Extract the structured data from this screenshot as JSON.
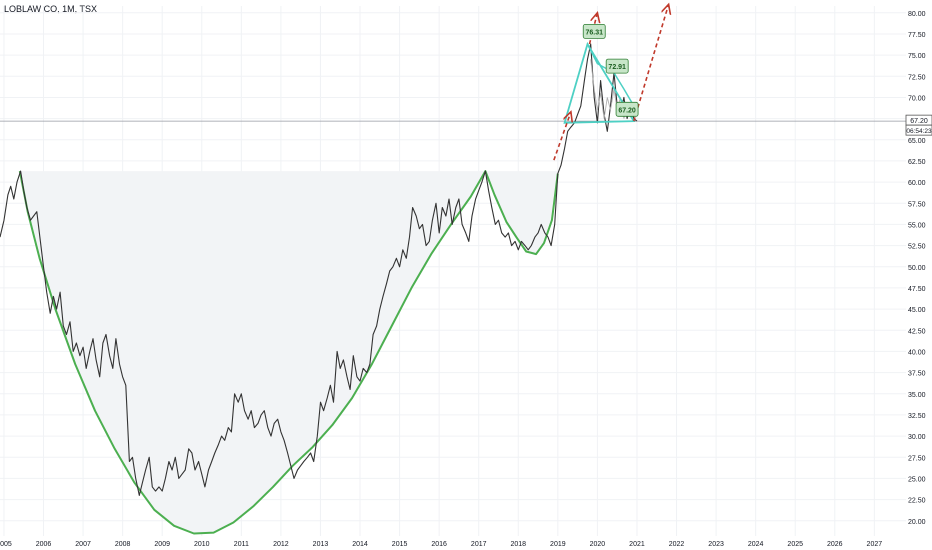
{
  "title": "LOBLAW CO, 1M, TSX",
  "price_tag": "67.20",
  "countdown_tag": "06:54:23",
  "colors": {
    "price_line": "#333333",
    "cup_curve": "#4caf50",
    "triangle": "#4dd0c4",
    "arrow": "#c0392b",
    "callout_bg": "#c8e6c9",
    "callout_border": "#2e7d32",
    "cup_fill": "#f2f4f6",
    "axis_text": "#131722"
  },
  "chart_data": {
    "type": "line",
    "title": "LOBLAW CO, 1M, TSX",
    "xlabel": "",
    "ylabel": "",
    "xlim": [
      2004.9,
      2027.8
    ],
    "ylim": [
      18.2,
      80.8
    ],
    "x_ticks": [
      "2005",
      "2006",
      "2007",
      "2008",
      "2009",
      "2010",
      "2011",
      "2012",
      "2013",
      "2014",
      "2015",
      "2016",
      "2017",
      "2018",
      "2019",
      "2020",
      "2021",
      "2022",
      "2023",
      "2024",
      "2025",
      "2026",
      "2027"
    ],
    "y_ticks": [
      "20.00",
      "22.50",
      "25.00",
      "27.50",
      "30.00",
      "32.50",
      "35.00",
      "37.50",
      "40.00",
      "42.50",
      "45.00",
      "47.50",
      "50.00",
      "52.50",
      "55.00",
      "57.50",
      "60.00",
      "62.50",
      "65.00",
      "67.50",
      "70.00",
      "72.50",
      "75.00",
      "77.50",
      "80.00"
    ],
    "grid": true,
    "series": [
      {
        "style": "price",
        "points": [
          [
            2004.9,
            53.5
          ],
          [
            2005.0,
            55.5
          ],
          [
            2005.1,
            58.5
          ],
          [
            2005.17,
            59.5
          ],
          [
            2005.25,
            58
          ],
          [
            2005.33,
            60
          ],
          [
            2005.42,
            61.3
          ],
          [
            2005.5,
            59
          ],
          [
            2005.58,
            57
          ],
          [
            2005.67,
            55.5
          ],
          [
            2005.75,
            56
          ],
          [
            2005.83,
            56.5
          ],
          [
            2005.92,
            53
          ],
          [
            2006.0,
            50
          ],
          [
            2006.08,
            47
          ],
          [
            2006.17,
            44.5
          ],
          [
            2006.25,
            46.5
          ],
          [
            2006.33,
            45
          ],
          [
            2006.42,
            47
          ],
          [
            2006.5,
            43
          ],
          [
            2006.58,
            42
          ],
          [
            2006.67,
            43.5
          ],
          [
            2006.75,
            40
          ],
          [
            2006.83,
            41
          ],
          [
            2006.92,
            39.5
          ],
          [
            2007.0,
            40.5
          ],
          [
            2007.08,
            38
          ],
          [
            2007.17,
            40
          ],
          [
            2007.25,
            41.5
          ],
          [
            2007.33,
            39
          ],
          [
            2007.42,
            37
          ],
          [
            2007.5,
            41
          ],
          [
            2007.58,
            42
          ],
          [
            2007.67,
            39.5
          ],
          [
            2007.75,
            38
          ],
          [
            2007.83,
            41.5
          ],
          [
            2007.92,
            38.5
          ],
          [
            2008.0,
            37
          ],
          [
            2008.08,
            36
          ],
          [
            2008.17,
            27
          ],
          [
            2008.25,
            27.5
          ],
          [
            2008.33,
            25
          ],
          [
            2008.42,
            23
          ],
          [
            2008.5,
            24.5
          ],
          [
            2008.58,
            26
          ],
          [
            2008.67,
            27.5
          ],
          [
            2008.75,
            24
          ],
          [
            2008.83,
            23.5
          ],
          [
            2008.92,
            24
          ],
          [
            2009.0,
            23.5
          ],
          [
            2009.08,
            25
          ],
          [
            2009.17,
            27
          ],
          [
            2009.25,
            26
          ],
          [
            2009.33,
            27.5
          ],
          [
            2009.42,
            25
          ],
          [
            2009.5,
            25.5
          ],
          [
            2009.58,
            26
          ],
          [
            2009.67,
            28.5
          ],
          [
            2009.75,
            28
          ],
          [
            2009.83,
            26
          ],
          [
            2009.92,
            27
          ],
          [
            2010.0,
            25.5
          ],
          [
            2010.08,
            24
          ],
          [
            2010.17,
            26
          ],
          [
            2010.25,
            27
          ],
          [
            2010.33,
            28
          ],
          [
            2010.42,
            29
          ],
          [
            2010.5,
            30
          ],
          [
            2010.58,
            29.5
          ],
          [
            2010.67,
            31
          ],
          [
            2010.75,
            30.5
          ],
          [
            2010.83,
            35
          ],
          [
            2010.92,
            34
          ],
          [
            2011.0,
            35
          ],
          [
            2011.08,
            33
          ],
          [
            2011.17,
            32
          ],
          [
            2011.25,
            33
          ],
          [
            2011.33,
            31
          ],
          [
            2011.42,
            31.5
          ],
          [
            2011.5,
            32.5
          ],
          [
            2011.58,
            33
          ],
          [
            2011.67,
            31
          ],
          [
            2011.75,
            30
          ],
          [
            2011.83,
            31.5
          ],
          [
            2011.92,
            32
          ],
          [
            2012.0,
            30.5
          ],
          [
            2012.08,
            29.5
          ],
          [
            2012.17,
            28
          ],
          [
            2012.25,
            26.5
          ],
          [
            2012.33,
            25
          ],
          [
            2012.42,
            26
          ],
          [
            2012.5,
            26.5
          ],
          [
            2012.58,
            27
          ],
          [
            2012.67,
            27.5
          ],
          [
            2012.75,
            28
          ],
          [
            2012.83,
            27
          ],
          [
            2012.92,
            30
          ],
          [
            2013.0,
            34
          ],
          [
            2013.08,
            33
          ],
          [
            2013.17,
            34.5
          ],
          [
            2013.25,
            36
          ],
          [
            2013.33,
            34
          ],
          [
            2013.42,
            40
          ],
          [
            2013.5,
            38
          ],
          [
            2013.58,
            39
          ],
          [
            2013.67,
            37
          ],
          [
            2013.75,
            35.5
          ],
          [
            2013.83,
            39.5
          ],
          [
            2013.92,
            37
          ],
          [
            2014.0,
            36.5
          ],
          [
            2014.08,
            38
          ],
          [
            2014.17,
            37.5
          ],
          [
            2014.25,
            38.5
          ],
          [
            2014.33,
            42
          ],
          [
            2014.42,
            43
          ],
          [
            2014.5,
            45
          ],
          [
            2014.58,
            46.5
          ],
          [
            2014.67,
            48
          ],
          [
            2014.75,
            49.5
          ],
          [
            2014.83,
            50
          ],
          [
            2014.92,
            51
          ],
          [
            2015.0,
            50
          ],
          [
            2015.08,
            52
          ],
          [
            2015.17,
            51
          ],
          [
            2015.25,
            53.5
          ],
          [
            2015.33,
            57
          ],
          [
            2015.42,
            56
          ],
          [
            2015.5,
            54.5
          ],
          [
            2015.58,
            55
          ],
          [
            2015.67,
            52.5
          ],
          [
            2015.75,
            53
          ],
          [
            2015.83,
            55.5
          ],
          [
            2015.92,
            57.5
          ],
          [
            2016.0,
            54
          ],
          [
            2016.08,
            57
          ],
          [
            2016.17,
            56
          ],
          [
            2016.25,
            58
          ],
          [
            2016.33,
            55
          ],
          [
            2016.42,
            57
          ],
          [
            2016.5,
            58
          ],
          [
            2016.58,
            55
          ],
          [
            2016.67,
            54
          ],
          [
            2016.75,
            53
          ],
          [
            2016.83,
            56
          ],
          [
            2016.92,
            58
          ],
          [
            2017.0,
            59
          ],
          [
            2017.08,
            60
          ],
          [
            2017.17,
            61.3
          ],
          [
            2017.25,
            59
          ],
          [
            2017.33,
            57
          ],
          [
            2017.42,
            55
          ],
          [
            2017.5,
            55.5
          ],
          [
            2017.58,
            54
          ],
          [
            2017.67,
            53.5
          ],
          [
            2017.75,
            54
          ],
          [
            2017.83,
            52.5
          ],
          [
            2017.92,
            53
          ],
          [
            2018.0,
            52
          ],
          [
            2018.08,
            53
          ],
          [
            2018.17,
            52.5
          ],
          [
            2018.25,
            52
          ],
          [
            2018.33,
            52.5
          ],
          [
            2018.42,
            53.5
          ],
          [
            2018.5,
            54
          ],
          [
            2018.58,
            55
          ],
          [
            2018.67,
            54
          ],
          [
            2018.75,
            53.5
          ],
          [
            2018.83,
            52.5
          ],
          [
            2018.92,
            55
          ],
          [
            2019.0,
            61
          ],
          [
            2019.08,
            62
          ],
          [
            2019.17,
            64
          ],
          [
            2019.25,
            66
          ],
          [
            2019.33,
            66.5
          ],
          [
            2019.42,
            67
          ],
          [
            2019.5,
            68
          ],
          [
            2019.58,
            69
          ],
          [
            2019.67,
            72
          ],
          [
            2019.75,
            74.5
          ],
          [
            2019.83,
            76.3
          ],
          [
            2019.92,
            70
          ],
          [
            2020.0,
            67
          ],
          [
            2020.08,
            72
          ],
          [
            2020.17,
            68
          ],
          [
            2020.25,
            66
          ],
          [
            2020.33,
            69
          ],
          [
            2020.42,
            72.9
          ],
          [
            2020.5,
            69
          ],
          [
            2020.58,
            68
          ],
          [
            2020.67,
            70
          ],
          [
            2020.75,
            67.5
          ],
          [
            2020.83,
            69
          ],
          [
            2020.92,
            67.5
          ],
          [
            2021.0,
            67.2
          ]
        ]
      },
      {
        "style": "inner",
        "points": [
          [
            2019.83,
            74.5
          ],
          [
            2019.92,
            71
          ],
          [
            2020.0,
            68.5
          ],
          [
            2020.08,
            70.5
          ],
          [
            2020.17,
            67.5
          ],
          [
            2020.25,
            70
          ],
          [
            2020.33,
            68.5
          ],
          [
            2020.42,
            71
          ],
          [
            2020.5,
            68.5
          ],
          [
            2020.58,
            70
          ],
          [
            2020.67,
            67.5
          ],
          [
            2020.75,
            69
          ],
          [
            2020.83,
            67.8
          ],
          [
            2020.92,
            68.5
          ]
        ]
      }
    ],
    "cup_curve": [
      [
        2005.4,
        61.3
      ],
      [
        2005.6,
        56.5
      ],
      [
        2005.9,
        51
      ],
      [
        2006.3,
        45
      ],
      [
        2006.8,
        38.5
      ],
      [
        2007.3,
        33
      ],
      [
        2007.8,
        28.5
      ],
      [
        2008.3,
        24.5
      ],
      [
        2008.8,
        21.3
      ],
      [
        2009.3,
        19.4
      ],
      [
        2009.8,
        18.5
      ],
      [
        2010.3,
        18.6
      ],
      [
        2010.8,
        19.8
      ],
      [
        2011.3,
        21.7
      ],
      [
        2011.8,
        24
      ],
      [
        2012.3,
        26.5
      ],
      [
        2012.8,
        28.7
      ],
      [
        2013.3,
        31.3
      ],
      [
        2013.8,
        34.5
      ],
      [
        2014.3,
        38.5
      ],
      [
        2014.8,
        43
      ],
      [
        2015.3,
        47.5
      ],
      [
        2015.8,
        51.5
      ],
      [
        2016.3,
        55
      ],
      [
        2016.8,
        58.3
      ],
      [
        2017.17,
        61.3
      ],
      [
        2017.4,
        58.5
      ],
      [
        2017.7,
        55.3
      ],
      [
        2017.95,
        53.5
      ],
      [
        2018.2,
        51.8
      ],
      [
        2018.45,
        51.5
      ],
      [
        2018.65,
        52.8
      ],
      [
        2018.85,
        55.5
      ],
      [
        2019.0,
        61
      ]
    ],
    "triangle": {
      "base_left": [
        2019.17,
        67
      ],
      "apex": [
        2019.75,
        76.3
      ],
      "base_right": [
        2020.92,
        67.2
      ],
      "inner_points": [
        [
          2020.0,
          74
        ],
        [
          2020.42,
          72.9
        ],
        [
          2020.67,
          71
        ],
        [
          2020.92,
          69
        ]
      ]
    },
    "arrows": [
      {
        "from": [
          2018.9,
          62.6
        ],
        "to": [
          2019.33,
          68.3
        ]
      },
      {
        "from": [
          2019.8,
          76.3
        ],
        "to": [
          2020.0,
          80
        ]
      },
      {
        "from": [
          2020.92,
          67.2
        ],
        "to": [
          2021.8,
          81
        ]
      }
    ],
    "annotations": [
      {
        "text": "76.31",
        "x": 2019.92,
        "y": 77.8
      },
      {
        "text": "72.91",
        "x": 2020.5,
        "y": 73.7
      },
      {
        "text": "67.20",
        "x": 2020.75,
        "y": 68.6
      }
    ],
    "cup_fill_band": [
      2005.4,
      2019.0
    ],
    "cup_fill_top": 61.3,
    "last_price": 67.2
  }
}
